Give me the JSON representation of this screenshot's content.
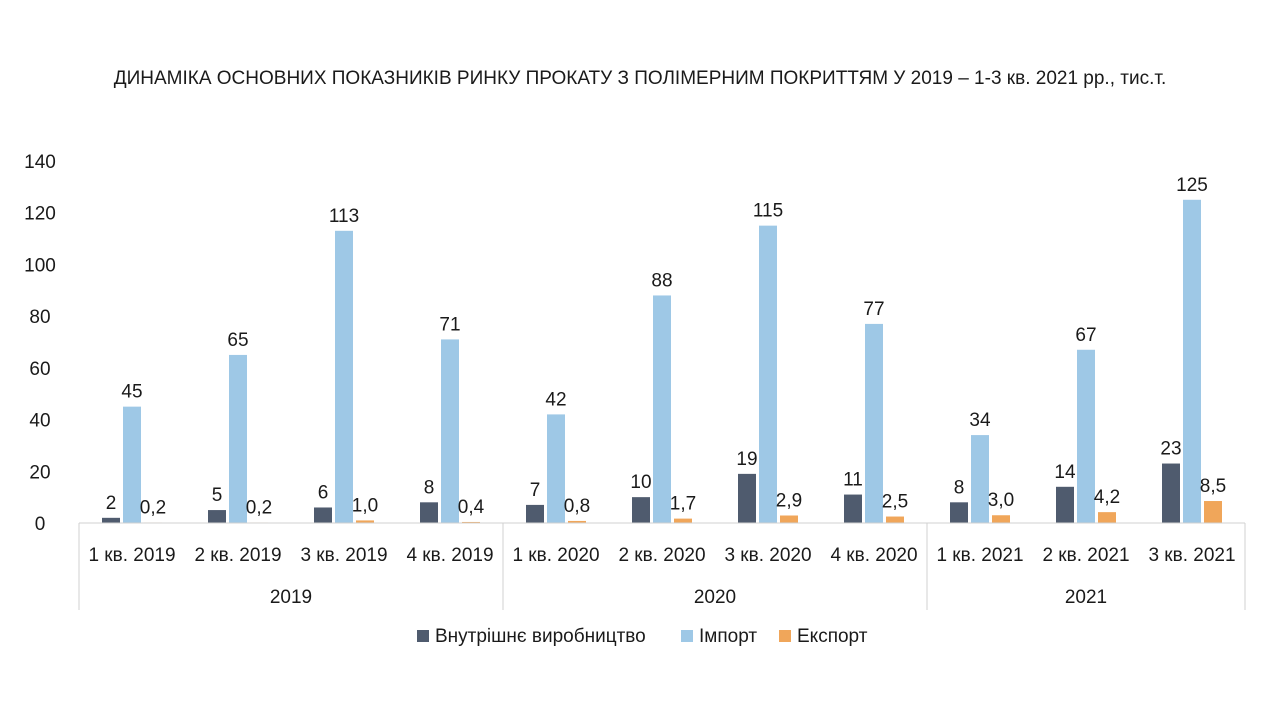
{
  "chart_data": {
    "type": "bar",
    "title": "ДИНАМІКА ОСНОВНИХ ПОКАЗНИКІВ РИНКУ ПРОКАТУ З ПОЛІМЕРНИМ ПОКРИТТЯМ У 2019 – 1-3 кв. 2021 рр., тис.т.",
    "categories": [
      "1 кв. 2019",
      "2 кв. 2019",
      "3 кв. 2019",
      "4 кв. 2019",
      "1 кв. 2020",
      "2 кв. 2020",
      "3 кв. 2020",
      "4 кв. 2020",
      "1 кв. 2021",
      "2 кв. 2021",
      "3 кв. 2021"
    ],
    "groups": [
      {
        "label": "2019",
        "count": 4
      },
      {
        "label": "2020",
        "count": 4
      },
      {
        "label": "2021",
        "count": 3
      }
    ],
    "series": [
      {
        "name": "Внутрішнє виробництво",
        "color": "#4f5b6e",
        "values": [
          2,
          5,
          6,
          8,
          7,
          10,
          19,
          11,
          8,
          14,
          23
        ],
        "labels": [
          "2",
          "5",
          "6",
          "8",
          "7",
          "10",
          "19",
          "11",
          "8",
          "14",
          "23"
        ]
      },
      {
        "name": "Імпорт",
        "color": "#9ec8e6",
        "values": [
          45,
          65,
          113,
          71,
          42,
          88,
          115,
          77,
          34,
          67,
          125
        ],
        "labels": [
          "45",
          "65",
          "113",
          "71",
          "42",
          "88",
          "115",
          "77",
          "34",
          "67",
          "125"
        ]
      },
      {
        "name": "Експорт",
        "color": "#f0a65a",
        "values": [
          0.2,
          0.2,
          1.0,
          0.4,
          0.8,
          1.7,
          2.9,
          2.5,
          3.0,
          4.2,
          8.5
        ],
        "labels": [
          "0,2",
          "0,2",
          "1,0",
          "0,4",
          "0,8",
          "1,7",
          "2,9",
          "2,5",
          "3,0",
          "4,2",
          "8,5"
        ]
      }
    ],
    "yticks": [
      0,
      20,
      40,
      60,
      80,
      100,
      120,
      140
    ],
    "ylim": [
      0,
      140
    ],
    "xlabel": "",
    "ylabel": "",
    "grid": false,
    "legend_position": "bottom"
  }
}
